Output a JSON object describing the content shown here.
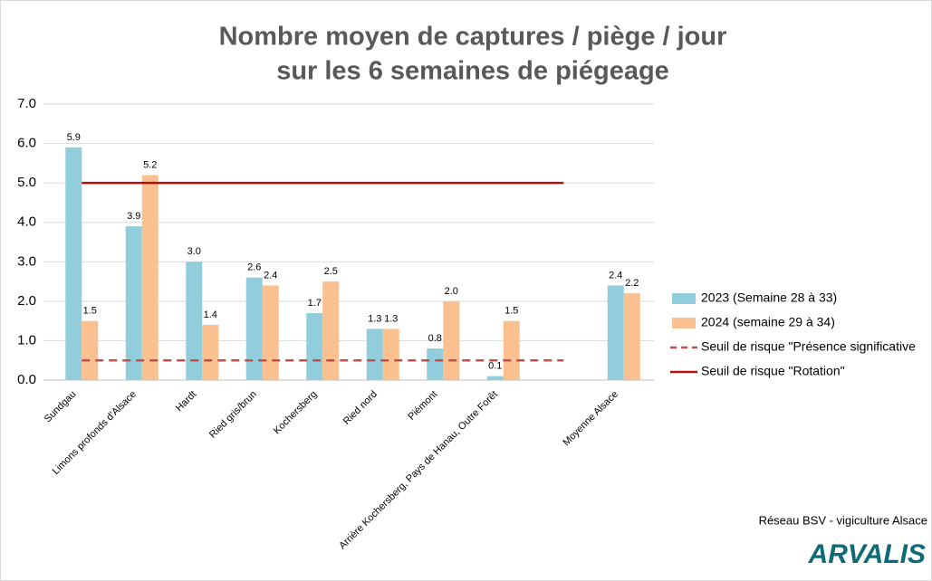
{
  "chart_data": {
    "type": "bar",
    "title": [
      "Nombre moyen de captures / piège / jour",
      "sur les 6 semaines de piégeage"
    ],
    "categories": [
      "Sundgau",
      "Limons profonds d'Alsace",
      "Hardt",
      "Ried gris/brun",
      "Kochersberg",
      "Ried nord",
      "Piémont",
      "Arrière Kochersberg, Pays de Hanau, Outre Forêt",
      null,
      "Moyenne Alsace"
    ],
    "series": [
      {
        "name": "2023 (Semaine 28 à 33)",
        "type": "bar",
        "color": "#92cddc",
        "values": [
          5.9,
          3.9,
          3.0,
          2.6,
          1.7,
          1.3,
          0.8,
          0.1,
          null,
          2.4
        ],
        "value_labels": [
          "5.9",
          "3.9",
          "3.0",
          "2.6",
          "1.7",
          "1.3",
          "0.8",
          "0.1",
          null,
          "2.4"
        ]
      },
      {
        "name": "2024 (semaine 29 à 34)",
        "type": "bar",
        "color": "#fac090",
        "values": [
          1.5,
          5.2,
          1.4,
          2.4,
          2.5,
          1.3,
          2.0,
          1.5,
          null,
          2.2
        ],
        "value_labels": [
          "1.5",
          "5.2",
          "1.4",
          "2.4",
          "2.5",
          "1.3",
          "2.0",
          "1.5",
          null,
          "2.2"
        ]
      },
      {
        "name": "Seuil de risque \"Présence significative",
        "type": "line",
        "dashed": true,
        "color": "#c0504d",
        "values": [
          0.5,
          0.5,
          0.5,
          0.5,
          0.5,
          0.5,
          0.5,
          0.5,
          0.5,
          null
        ]
      },
      {
        "name": "Seuil de risque \"Rotation\"",
        "type": "line",
        "dashed": false,
        "color": "#b01010",
        "values": [
          5.0,
          5.0,
          5.0,
          5.0,
          5.0,
          5.0,
          5.0,
          5.0,
          5.0,
          null
        ]
      }
    ],
    "ylim": [
      0,
      7
    ],
    "yticks": [
      {
        "value": 0,
        "label": "0.0"
      },
      {
        "value": 1,
        "label": "1.0"
      },
      {
        "value": 2,
        "label": "2.0"
      },
      {
        "value": 3,
        "label": "3.0"
      },
      {
        "value": 4,
        "label": "4.0"
      },
      {
        "value": 5,
        "label": "5.0"
      },
      {
        "value": 6,
        "label": "6.0"
      },
      {
        "value": 7,
        "label": "7.0"
      }
    ],
    "grid": true,
    "legend": "right",
    "source": "Réseau BSV - vigiculture Alsace",
    "logo": "ARVALIS"
  }
}
